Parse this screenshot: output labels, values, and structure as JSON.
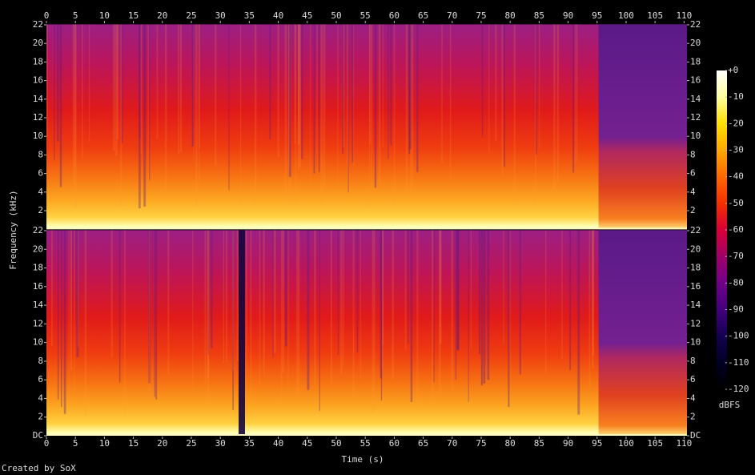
{
  "chart_data": {
    "type": "spectrogram",
    "x_label": "Time (s)",
    "y_label": "Frequency (kHz)",
    "footer": "Created by SoX",
    "xlim": [
      0,
      110.5
    ],
    "xticks": [
      0,
      5,
      10,
      15,
      20,
      25,
      30,
      35,
      40,
      45,
      50,
      55,
      60,
      65,
      70,
      75,
      80,
      85,
      90,
      95,
      100,
      105,
      110
    ],
    "channels": [
      {
        "ylim": [
          0,
          22.05
        ],
        "yticks": [
          2,
          4,
          6,
          8,
          10,
          12,
          14,
          16,
          18,
          20,
          22
        ]
      },
      {
        "ylim": [
          0,
          22.05
        ],
        "yticks": [
          {
            "value": 0,
            "label": "DC"
          },
          2,
          4,
          6,
          8,
          10,
          12,
          14,
          16,
          18,
          20,
          22
        ]
      }
    ],
    "colorbar": {
      "label": "dBFS",
      "lim": [
        -120,
        0
      ],
      "ticks": [
        {
          "value": 0,
          "label": "+0"
        },
        -10,
        -20,
        -30,
        -40,
        -50,
        -60,
        -70,
        -80,
        -90,
        -100,
        -110,
        -120
      ],
      "colors": [
        "#ffffff",
        "#ffffa0",
        "#ffe000",
        "#ffa800",
        "#ff6800",
        "#f43000",
        "#d80038",
        "#a00068",
        "#700088",
        "#44007c",
        "#140050",
        "#000024",
        "#000000"
      ]
    }
  }
}
